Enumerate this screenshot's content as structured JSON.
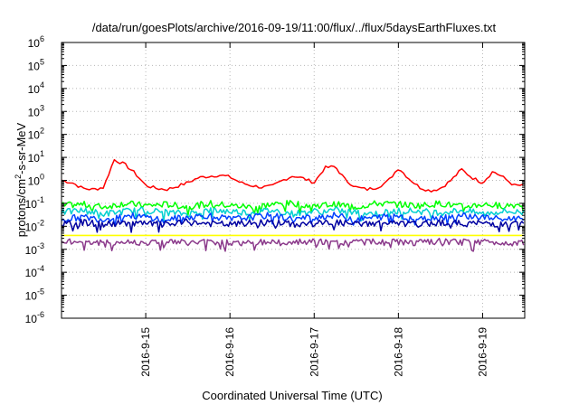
{
  "chart_data": {
    "type": "line",
    "title": "/data/run/goesPlots/archive/2016-09-19/11:00/flux/../flux/5daysEarthFluxes.txt",
    "xlabel": "Coordinated Universal Time (UTC)",
    "ylabel_parts": {
      "a": "protons/cm",
      "sup": "2",
      "b": "-s-sr-MeV"
    },
    "xscale": "date",
    "xlim": [
      "2016-09-14 00:00",
      "2016-09-19 12:00"
    ],
    "xticks": [
      "2016-9-15",
      "2016-9-16",
      "2016-9-17",
      "2016-9-18",
      "2016-9-19"
    ],
    "yscale": "log",
    "ylim": [
      1e-06,
      1000000.0
    ],
    "yticks": [
      {
        "value": 1e-06,
        "base": "10",
        "exp": "-6"
      },
      {
        "value": 1e-05,
        "base": "10",
        "exp": "-5"
      },
      {
        "value": 0.0001,
        "base": "10",
        "exp": "-4"
      },
      {
        "value": 0.001,
        "base": "10",
        "exp": "-3"
      },
      {
        "value": 0.01,
        "base": "10",
        "exp": "-2"
      },
      {
        "value": 0.1,
        "base": "10",
        "exp": "-1"
      },
      {
        "value": 1,
        "base": "10",
        "exp": "0"
      },
      {
        "value": 10,
        "base": "10",
        "exp": "1"
      },
      {
        "value": 100,
        "base": "10",
        "exp": "2"
      },
      {
        "value": 1000.0,
        "base": "10",
        "exp": "3"
      },
      {
        "value": 10000.0,
        "base": "10",
        "exp": "4"
      },
      {
        "value": 100000.0,
        "base": "10",
        "exp": "5"
      },
      {
        "value": 1000000.0,
        "base": "10",
        "exp": "6"
      }
    ],
    "grid": true,
    "legend": "none",
    "series": [
      {
        "color": "#ff0000",
        "x": [
          "2016-09-14 00:00",
          "2016-09-14 03:00",
          "2016-09-14 06:00",
          "2016-09-14 09:00",
          "2016-09-14 12:00",
          "2016-09-14 15:00",
          "2016-09-14 18:00",
          "2016-09-14 21:00",
          "2016-09-15 00:00",
          "2016-09-15 03:00",
          "2016-09-15 06:00",
          "2016-09-15 09:00",
          "2016-09-15 12:00",
          "2016-09-15 15:00",
          "2016-09-15 18:00",
          "2016-09-15 21:00",
          "2016-09-16 00:00",
          "2016-09-16 03:00",
          "2016-09-16 06:00",
          "2016-09-16 09:00",
          "2016-09-16 12:00",
          "2016-09-16 15:00",
          "2016-09-16 18:00",
          "2016-09-16 21:00",
          "2016-09-17 00:00",
          "2016-09-17 03:00",
          "2016-09-17 06:00",
          "2016-09-17 09:00",
          "2016-09-17 12:00",
          "2016-09-17 15:00",
          "2016-09-17 18:00",
          "2016-09-17 21:00",
          "2016-09-18 00:00",
          "2016-09-18 03:00",
          "2016-09-18 06:00",
          "2016-09-18 09:00",
          "2016-09-18 12:00",
          "2016-09-18 15:00",
          "2016-09-18 18:00",
          "2016-09-18 21:00",
          "2016-09-19 00:00",
          "2016-09-19 03:00",
          "2016-09-19 06:00",
          "2016-09-19 09:00",
          "2016-09-19 12:00"
        ],
        "y": [
          1.0,
          0.8,
          0.45,
          0.4,
          0.5,
          8.0,
          5.0,
          2.0,
          0.6,
          0.45,
          0.4,
          0.55,
          0.8,
          1.3,
          1.5,
          1.7,
          1.4,
          0.8,
          0.6,
          0.5,
          0.55,
          1.0,
          1.6,
          1.2,
          0.8,
          3.5,
          4.0,
          1.0,
          0.5,
          0.4,
          0.5,
          0.9,
          3.5,
          1.2,
          0.5,
          0.35,
          0.45,
          1.0,
          3.0,
          1.3,
          0.8,
          2.5,
          1.3,
          0.6,
          0.6
        ]
      },
      {
        "color": "#00ff00",
        "x": [
          "2016-09-14 00:00",
          "2016-09-14 06:00",
          "2016-09-14 12:00",
          "2016-09-14 18:00",
          "2016-09-15 00:00",
          "2016-09-15 06:00",
          "2016-09-15 12:00",
          "2016-09-15 18:00",
          "2016-09-16 00:00",
          "2016-09-16 06:00",
          "2016-09-16 12:00",
          "2016-09-16 18:00",
          "2016-09-17 00:00",
          "2016-09-17 06:00",
          "2016-09-17 12:00",
          "2016-09-17 18:00",
          "2016-09-18 00:00",
          "2016-09-18 06:00",
          "2016-09-18 12:00",
          "2016-09-18 18:00",
          "2016-09-19 00:00",
          "2016-09-19 06:00",
          "2016-09-19 12:00"
        ],
        "y": [
          0.08,
          0.09,
          0.07,
          0.1,
          0.08,
          0.09,
          0.07,
          0.1,
          0.08,
          0.07,
          0.09,
          0.1,
          0.08,
          0.09,
          0.07,
          0.1,
          0.09,
          0.08,
          0.1,
          0.07,
          0.09,
          0.08,
          0.09
        ]
      },
      {
        "color": "#00d0d0",
        "x": [
          "2016-09-14 00:00",
          "2016-09-14 06:00",
          "2016-09-14 12:00",
          "2016-09-14 18:00",
          "2016-09-15 00:00",
          "2016-09-15 06:00",
          "2016-09-15 12:00",
          "2016-09-15 18:00",
          "2016-09-16 00:00",
          "2016-09-16 06:00",
          "2016-09-16 12:00",
          "2016-09-16 18:00",
          "2016-09-17 00:00",
          "2016-09-17 06:00",
          "2016-09-17 12:00",
          "2016-09-17 18:00",
          "2016-09-18 00:00",
          "2016-09-18 06:00",
          "2016-09-18 12:00",
          "2016-09-18 18:00",
          "2016-09-19 00:00",
          "2016-09-19 06:00",
          "2016-09-19 12:00"
        ],
        "y": [
          0.04,
          0.05,
          0.035,
          0.045,
          0.05,
          0.04,
          0.035,
          0.05,
          0.045,
          0.04,
          0.05,
          0.035,
          0.045,
          0.05,
          0.04,
          0.035,
          0.05,
          0.045,
          0.04,
          0.05,
          0.035,
          0.045,
          0.04
        ]
      },
      {
        "color": "#0040ff",
        "x": [
          "2016-09-14 00:00",
          "2016-09-14 06:00",
          "2016-09-14 12:00",
          "2016-09-14 18:00",
          "2016-09-15 00:00",
          "2016-09-15 06:00",
          "2016-09-15 12:00",
          "2016-09-15 18:00",
          "2016-09-16 00:00",
          "2016-09-16 06:00",
          "2016-09-16 12:00",
          "2016-09-16 18:00",
          "2016-09-17 00:00",
          "2016-09-17 06:00",
          "2016-09-17 12:00",
          "2016-09-17 18:00",
          "2016-09-18 00:00",
          "2016-09-18 06:00",
          "2016-09-18 12:00",
          "2016-09-18 18:00",
          "2016-09-19 00:00",
          "2016-09-19 06:00",
          "2016-09-19 12:00"
        ],
        "y": [
          0.02,
          0.025,
          0.02,
          0.03,
          0.025,
          0.02,
          0.025,
          0.03,
          0.02,
          0.025,
          0.03,
          0.02,
          0.025,
          0.03,
          0.02,
          0.025,
          0.03,
          0.02,
          0.025,
          0.03,
          0.025,
          0.02,
          0.025
        ]
      },
      {
        "color": "#0000a0",
        "x": [
          "2016-09-14 00:00",
          "2016-09-14 06:00",
          "2016-09-14 12:00",
          "2016-09-14 18:00",
          "2016-09-15 00:00",
          "2016-09-15 06:00",
          "2016-09-15 12:00",
          "2016-09-15 18:00",
          "2016-09-16 00:00",
          "2016-09-16 06:00",
          "2016-09-16 12:00",
          "2016-09-16 18:00",
          "2016-09-17 00:00",
          "2016-09-17 06:00",
          "2016-09-17 12:00",
          "2016-09-17 18:00",
          "2016-09-18 00:00",
          "2016-09-18 06:00",
          "2016-09-18 12:00",
          "2016-09-18 18:00",
          "2016-09-19 00:00",
          "2016-09-19 06:00",
          "2016-09-19 12:00"
        ],
        "y": [
          0.012,
          0.015,
          0.012,
          0.014,
          0.013,
          0.012,
          0.015,
          0.013,
          0.012,
          0.014,
          0.015,
          0.012,
          0.013,
          0.015,
          0.012,
          0.014,
          0.013,
          0.012,
          0.015,
          0.013,
          0.014,
          0.012,
          0.013
        ]
      },
      {
        "color": "#ffff00",
        "x": [
          "2016-09-14 00:00",
          "2016-09-15 00:00",
          "2016-09-16 00:00",
          "2016-09-17 00:00",
          "2016-09-18 00:00",
          "2016-09-19 00:00",
          "2016-09-19 12:00"
        ],
        "y": [
          0.004,
          0.004,
          0.004,
          0.004,
          0.004,
          0.004,
          0.004
        ]
      },
      {
        "color": "#8b3a8b",
        "x": [
          "2016-09-14 00:00",
          "2016-09-14 06:00",
          "2016-09-14 12:00",
          "2016-09-14 18:00",
          "2016-09-15 00:00",
          "2016-09-15 06:00",
          "2016-09-15 12:00",
          "2016-09-15 18:00",
          "2016-09-16 00:00",
          "2016-09-16 06:00",
          "2016-09-16 12:00",
          "2016-09-16 18:00",
          "2016-09-17 00:00",
          "2016-09-17 06:00",
          "2016-09-17 12:00",
          "2016-09-17 18:00",
          "2016-09-18 00:00",
          "2016-09-18 06:00",
          "2016-09-18 12:00",
          "2016-09-18 18:00",
          "2016-09-19 00:00",
          "2016-09-19 06:00",
          "2016-09-19 12:00"
        ],
        "y": [
          0.002,
          0.0022,
          0.0019,
          0.0021,
          0.002,
          0.0022,
          0.0019,
          0.0021,
          0.002,
          0.0018,
          0.0022,
          0.002,
          0.0021,
          0.0019,
          0.0022,
          0.002,
          0.0021,
          0.0019,
          0.0022,
          0.002,
          0.0021,
          0.0019,
          0.002
        ]
      }
    ]
  }
}
